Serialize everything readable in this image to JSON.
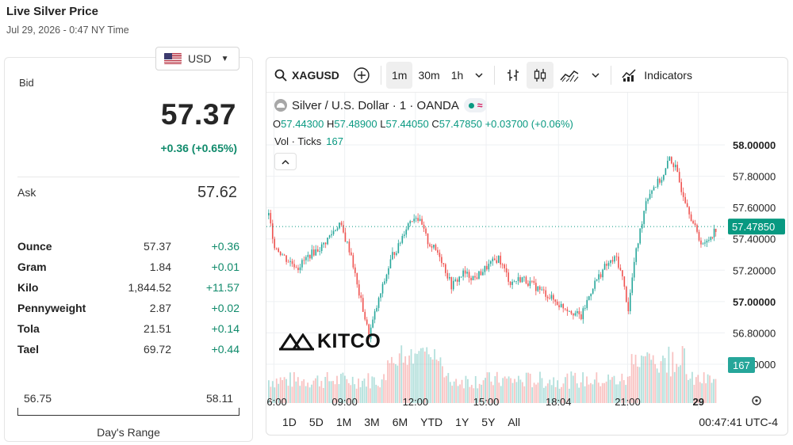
{
  "header": {
    "title": "Live Silver Price",
    "time": "Jul 29, 2026 - 0:47 NY Time"
  },
  "currency": {
    "selected": "USD",
    "flag_icon": "us-flag-icon"
  },
  "quote": {
    "bid_label": "Bid",
    "bid": "57.37",
    "change": "+0.36 (+0.65%)",
    "ask_label": "Ask",
    "ask": "57.62",
    "positive_color": "#0f8a6b"
  },
  "units": [
    {
      "name": "Ounce",
      "price": "57.37",
      "change": "+0.36"
    },
    {
      "name": "Gram",
      "price": "1.84",
      "change": "+0.01"
    },
    {
      "name": "Kilo",
      "price": "1,844.52",
      "change": "+11.57"
    },
    {
      "name": "Pennyweight",
      "price": "2.87",
      "change": "+0.02"
    },
    {
      "name": "Tola",
      "price": "21.51",
      "change": "+0.14"
    },
    {
      "name": "Tael",
      "price": "69.72",
      "change": "+0.44"
    }
  ],
  "day_range": {
    "low": "56.75",
    "high": "58.11",
    "label": "Day's Range"
  },
  "toolbar": {
    "symbol": "XAGUSD",
    "intervals": [
      "1m",
      "30m",
      "1h"
    ],
    "active_interval": "1m",
    "indicators_label": "Indicators"
  },
  "legend": {
    "title": "Silver / U.S. Dollar · 1 · OANDA",
    "o_label": "O",
    "o": "57.44300",
    "h_label": "H",
    "h": "57.48900",
    "l_label": "L",
    "l": "57.44050",
    "c_label": "C",
    "c": "57.47850",
    "change": "+0.03700 (+0.06%)",
    "vol_label": "Vol · Ticks",
    "vol": "167"
  },
  "watermark": "KITCO",
  "chart_data": {
    "type": "line",
    "x": [
      "05:45",
      "06:00",
      "06:30",
      "07:00",
      "07:30",
      "08:00",
      "08:30",
      "08:45",
      "09:00",
      "09:15",
      "09:30",
      "09:45",
      "10:00",
      "10:15",
      "10:30",
      "11:00",
      "11:15",
      "11:30",
      "11:45",
      "12:00",
      "12:15",
      "12:30",
      "13:00",
      "13:30",
      "14:00",
      "14:30",
      "15:00",
      "15:30",
      "16:00",
      "16:30",
      "17:00",
      "17:30",
      "18:04",
      "18:30",
      "19:00",
      "19:30",
      "20:00",
      "20:30",
      "20:45",
      "21:00",
      "21:15",
      "21:30",
      "21:45",
      "22:00",
      "22:30",
      "22:45",
      "23:00",
      "23:15",
      "23:30",
      "23:45",
      "00:00",
      "00:15",
      "00:30",
      "00:47"
    ],
    "series": [
      {
        "values": [
          57.55,
          57.36,
          57.27,
          57.22,
          57.3,
          57.35,
          57.45,
          57.5,
          57.4,
          57.3,
          57.1,
          56.95,
          56.78,
          56.92,
          57.05,
          57.3,
          57.35,
          57.45,
          57.52,
          57.55,
          57.48,
          57.38,
          57.3,
          57.1,
          57.18,
          57.15,
          57.22,
          57.28,
          57.12,
          57.15,
          57.1,
          57.05,
          56.98,
          56.95,
          56.9,
          57.1,
          57.22,
          57.28,
          57.15,
          56.95,
          57.25,
          57.45,
          57.65,
          57.72,
          57.8,
          57.92,
          57.85,
          57.72,
          57.62,
          57.5,
          57.4,
          57.36,
          57.42,
          57.48
        ]
      }
    ],
    "volume_last": 167,
    "y_ticks": [
      "58.00000",
      "57.80000",
      "57.60000",
      "57.40000",
      "57.20000",
      "57.00000",
      "56.80000",
      "56.60000"
    ],
    "ylim": [
      56.5,
      58.05
    ],
    "x_ticks": [
      "06:00",
      "09:00",
      "12:00",
      "15:00",
      "18:04",
      "21:00",
      "29"
    ],
    "last_price_label": "57.47850",
    "volume_label": "167",
    "colors": {
      "up": "#26a69a",
      "down": "#ef5350",
      "grid": "#eef0f3"
    }
  },
  "bottom": {
    "ranges": [
      "1D",
      "5D",
      "1M",
      "3M",
      "6M",
      "YTD",
      "1Y",
      "5Y",
      "All"
    ],
    "clock": "00:47:41 UTC-4"
  }
}
